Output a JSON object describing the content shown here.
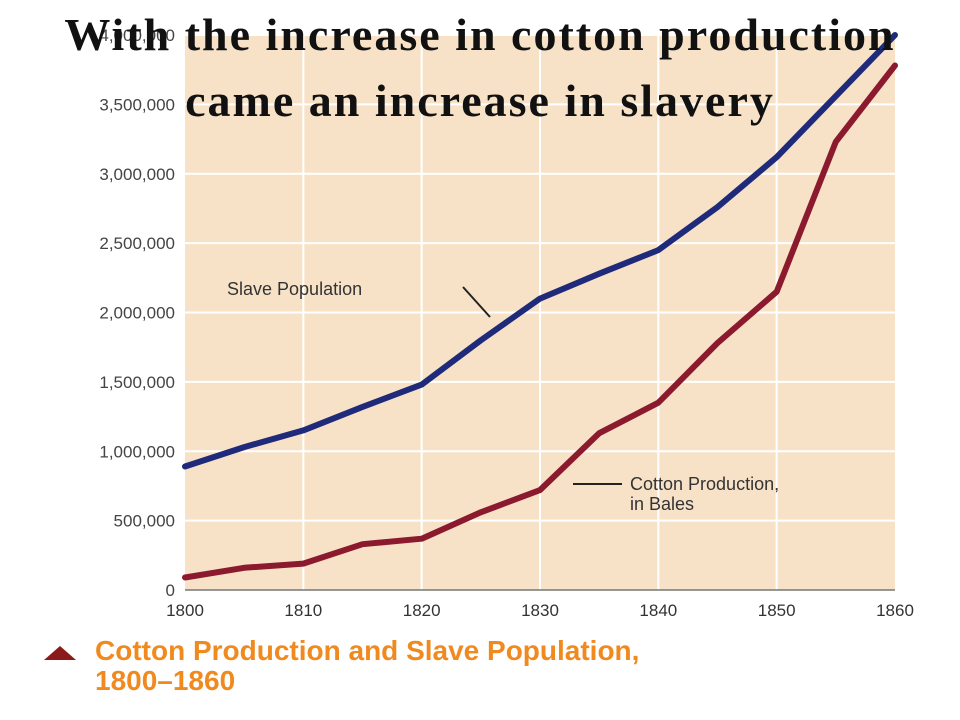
{
  "slide": {
    "title": "With the increase in cotton production came an increase in slavery"
  },
  "caption": {
    "title": "Cotton Production and Slave Population,",
    "years": "1800–1860"
  },
  "colors": {
    "plot_background": "#f7e2c8",
    "grid": "#ffffff",
    "slave_series": "#1f2a7a",
    "cotton_series": "#8b1a2e",
    "caption_text": "#f08a1f",
    "caption_marker": "#8b1a1a"
  },
  "chart_data": {
    "type": "line",
    "title": "Cotton Production and Slave Population, 1800–1860",
    "xlabel": "",
    "ylabel": "",
    "xlim": [
      1800,
      1860
    ],
    "ylim": [
      0,
      4000000
    ],
    "grid": true,
    "x_ticks": [
      "1800",
      "1810",
      "1820",
      "1830",
      "1840",
      "1850",
      "1860"
    ],
    "y_ticks": [
      "0",
      "500,000",
      "1,000,000",
      "1,500,000",
      "2,000,000",
      "2,500,000",
      "3,000,000",
      "3,500,000",
      "4,000,000"
    ],
    "series": [
      {
        "name": "Slave Population",
        "x": [
          1800,
          1805,
          1810,
          1815,
          1820,
          1825,
          1830,
          1835,
          1840,
          1845,
          1850,
          1855,
          1860
        ],
        "y": [
          890000,
          1030000,
          1150000,
          1320000,
          1480000,
          1800000,
          2100000,
          2280000,
          2450000,
          2760000,
          3120000,
          3560000,
          4000000
        ]
      },
      {
        "name": "Cotton Production, in Bales",
        "x": [
          1800,
          1805,
          1810,
          1815,
          1820,
          1825,
          1830,
          1835,
          1840,
          1845,
          1850,
          1855,
          1860
        ],
        "y": [
          90000,
          160000,
          190000,
          330000,
          370000,
          560000,
          720000,
          1130000,
          1350000,
          1780000,
          2150000,
          3230000,
          3780000
        ]
      }
    ],
    "annotations": [
      "Slave Population",
      "Cotton Production, in Bales"
    ]
  }
}
